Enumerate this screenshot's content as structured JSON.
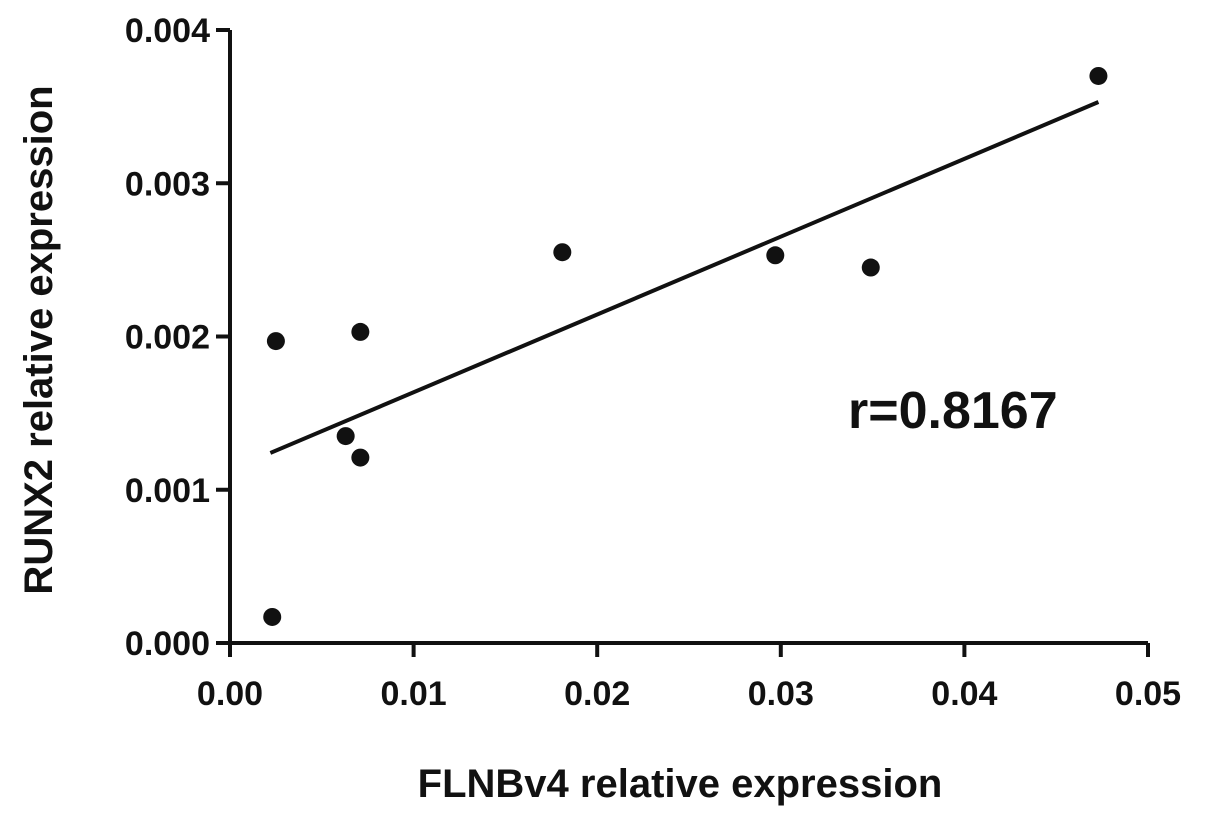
{
  "chart_data": {
    "type": "scatter",
    "title": "",
    "xlabel": "FLNBv4 relative expression",
    "ylabel": "RUNX2 relative expression",
    "xlim": [
      0,
      0.05
    ],
    "ylim": [
      0,
      0.004
    ],
    "x_ticks": [
      "0.00",
      "0.01",
      "0.02",
      "0.03",
      "0.04",
      "0.05"
    ],
    "y_ticks": [
      "0.000",
      "0.001",
      "0.002",
      "0.003",
      "0.004"
    ],
    "points": [
      {
        "x": 0.0023,
        "y": 0.00017
      },
      {
        "x": 0.0025,
        "y": 0.00197
      },
      {
        "x": 0.0063,
        "y": 0.00135
      },
      {
        "x": 0.0071,
        "y": 0.00203
      },
      {
        "x": 0.0071,
        "y": 0.00121
      },
      {
        "x": 0.0181,
        "y": 0.00255
      },
      {
        "x": 0.0297,
        "y": 0.00253
      },
      {
        "x": 0.0349,
        "y": 0.00245
      },
      {
        "x": 0.0473,
        "y": 0.0037
      }
    ],
    "regression_line": {
      "x": [
        0.0022,
        0.0473
      ],
      "y": [
        0.00124,
        0.00353
      ]
    },
    "annotation": "r=0.8167",
    "grid": false,
    "legend": "none"
  }
}
